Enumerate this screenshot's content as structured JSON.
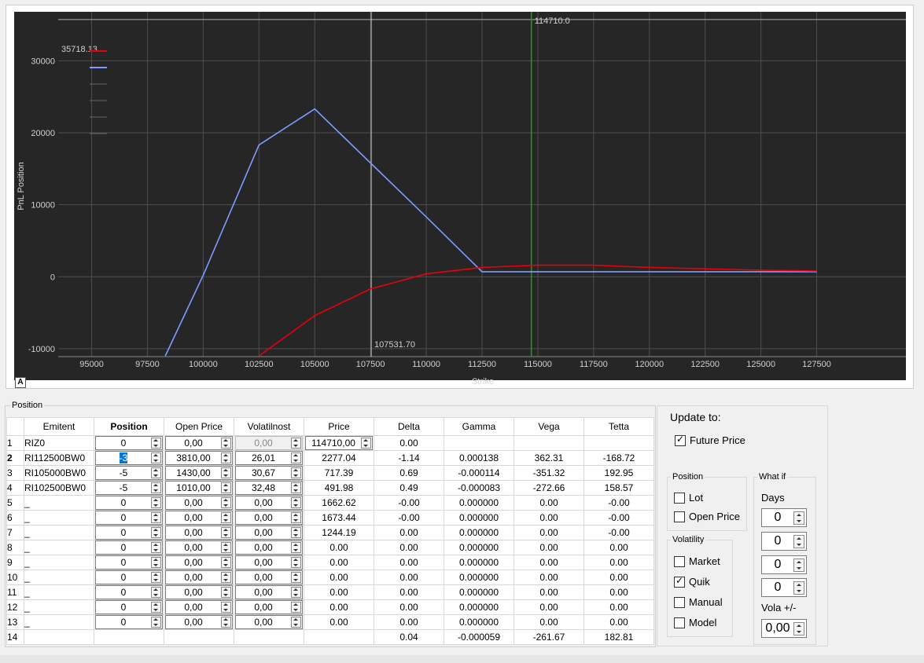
{
  "chart_data": {
    "type": "line",
    "xlabel": "Strike",
    "ylabel": "PnL Position",
    "xlim": [
      93500,
      131500
    ],
    "ylim": [
      -11100,
      36800
    ],
    "xticks": [
      "95000",
      "97500",
      "100000",
      "102500",
      "105000",
      "107500",
      "110000",
      "112500",
      "115000",
      "117500",
      "120000",
      "122500",
      "125000",
      "127500"
    ],
    "yticks": [
      "-10000",
      "0",
      "10000",
      "20000",
      "30000"
    ],
    "grid": true,
    "background": "#262626",
    "annotations": {
      "top_value": "35718.13",
      "future_price_label": "114710.0",
      "cursor_label": "107531.70",
      "future_price_x": 114710,
      "cursor_x": 107531.7,
      "hline_y": 35718.13
    },
    "series": [
      {
        "color": "#e8000b",
        "x": [
          102500,
          105000,
          107500,
          110000,
          112500,
          115000,
          117500,
          120000,
          122500,
          125000,
          127500
        ],
        "y": [
          -11000,
          -5400,
          -1700,
          400,
          1300,
          1600,
          1600,
          1300,
          1100,
          900,
          800
        ]
      },
      {
        "color": "#7f9bff",
        "x": [
          98300,
          100000,
          102500,
          105000,
          107500,
          110000,
          112500,
          115000,
          117500,
          120000,
          122500,
          125000,
          127500
        ],
        "y": [
          -11000,
          200,
          18300,
          23300,
          15800,
          8300,
          700,
          700,
          700,
          700,
          700,
          700,
          700
        ]
      }
    ]
  },
  "chart_badge": "A",
  "position_group": {
    "title": "Position",
    "columns": [
      "",
      "Emitent",
      "Position",
      "Open Price",
      "Volatilnost",
      "Price",
      "Delta",
      "Gamma",
      "Vega",
      "Tetta"
    ],
    "rows": [
      {
        "n": "1",
        "emitent": "RIZ0",
        "position": "0",
        "open_price": "0,00",
        "vol": "0,00",
        "price": "114710,00",
        "delta": "0.00",
        "gamma": "",
        "vega": "",
        "tetta": ""
      },
      {
        "n": "2",
        "emitent": "RI112500BW0",
        "position": "-3",
        "open_price": "3810,00",
        "vol": "26,01",
        "price": "2277.04",
        "delta": "-1.14",
        "gamma": "0.000138",
        "vega": "362.31",
        "tetta": "-168.72"
      },
      {
        "n": "3",
        "emitent": "RI105000BW0",
        "position": "-5",
        "open_price": "1430,00",
        "vol": "30,67",
        "price": "717.39",
        "delta": "0.69",
        "gamma": "-0.000114",
        "vega": "-351.32",
        "tetta": "192.95"
      },
      {
        "n": "4",
        "emitent": "RI102500BW0",
        "position": "-5",
        "open_price": "1010,00",
        "vol": "32,48",
        "price": "491.98",
        "delta": "0.49",
        "gamma": "-0.000083",
        "vega": "-272.66",
        "tetta": "158.57"
      },
      {
        "n": "5",
        "emitent": "_",
        "position": "0",
        "open_price": "0,00",
        "vol": "0,00",
        "price": "1662.62",
        "delta": "-0.00",
        "gamma": "0.000000",
        "vega": "0.00",
        "tetta": "-0.00"
      },
      {
        "n": "6",
        "emitent": "_",
        "position": "0",
        "open_price": "0,00",
        "vol": "0,00",
        "price": "1673.44",
        "delta": "-0.00",
        "gamma": "0.000000",
        "vega": "0.00",
        "tetta": "-0.00"
      },
      {
        "n": "7",
        "emitent": "_",
        "position": "0",
        "open_price": "0,00",
        "vol": "0,00",
        "price": "1244.19",
        "delta": "0.00",
        "gamma": "0.000000",
        "vega": "0.00",
        "tetta": "-0.00"
      },
      {
        "n": "8",
        "emitent": "_",
        "position": "0",
        "open_price": "0,00",
        "vol": "0,00",
        "price": "0.00",
        "delta": "0.00",
        "gamma": "0.000000",
        "vega": "0.00",
        "tetta": "0.00"
      },
      {
        "n": "9",
        "emitent": "_",
        "position": "0",
        "open_price": "0,00",
        "vol": "0,00",
        "price": "0.00",
        "delta": "0.00",
        "gamma": "0.000000",
        "vega": "0.00",
        "tetta": "0.00"
      },
      {
        "n": "10",
        "emitent": "_",
        "position": "0",
        "open_price": "0,00",
        "vol": "0,00",
        "price": "0.00",
        "delta": "0.00",
        "gamma": "0.000000",
        "vega": "0.00",
        "tetta": "0.00"
      },
      {
        "n": "11",
        "emitent": "_",
        "position": "0",
        "open_price": "0,00",
        "vol": "0,00",
        "price": "0.00",
        "delta": "0.00",
        "gamma": "0.000000",
        "vega": "0.00",
        "tetta": "0.00"
      },
      {
        "n": "12",
        "emitent": "_",
        "position": "0",
        "open_price": "0,00",
        "vol": "0,00",
        "price": "0.00",
        "delta": "0.00",
        "gamma": "0.000000",
        "vega": "0.00",
        "tetta": "0.00"
      },
      {
        "n": "13",
        "emitent": "_",
        "position": "0",
        "open_price": "0,00",
        "vol": "0,00",
        "price": "0.00",
        "delta": "0.00",
        "gamma": "0.000000",
        "vega": "0.00",
        "tetta": "0.00"
      }
    ],
    "total": {
      "n": "14",
      "delta": "0.04",
      "gamma": "-0.000059",
      "vega": "-261.67",
      "tetta": "182.81"
    }
  },
  "update_panel": {
    "title": "Update to:",
    "future_price": {
      "label": "Future Price",
      "checked": true
    },
    "position_group": {
      "title": "Position",
      "lot": {
        "label": "Lot",
        "checked": false
      },
      "open_price": {
        "label": "Open Price",
        "checked": false
      }
    },
    "volatility_group": {
      "title": "Volatility",
      "items": [
        {
          "label": "Market",
          "checked": false
        },
        {
          "label": "Quik",
          "checked": true
        },
        {
          "label": "Manual",
          "checked": false
        },
        {
          "label": "Model",
          "checked": false
        }
      ]
    },
    "whatif_group": {
      "title": "What if",
      "days_label": "Days",
      "days": [
        "0",
        "0",
        "0",
        "0"
      ],
      "vola_label": "Vola +/-",
      "vola": "0,00"
    }
  }
}
